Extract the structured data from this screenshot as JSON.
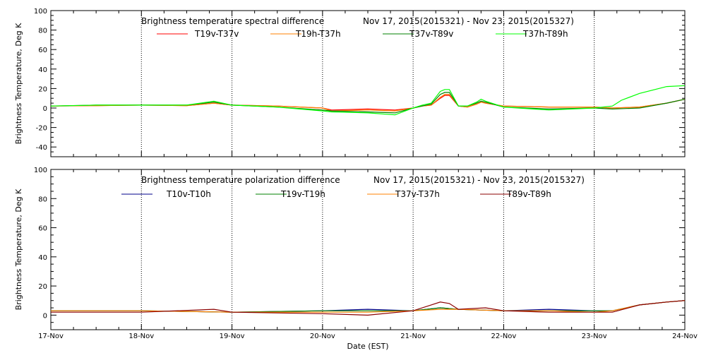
{
  "chart_data": [
    {
      "type": "line",
      "title": "Brightness temperature spectral difference",
      "subtitle": "Nov 17, 2015(2015321) - Nov 23, 2015(2015327)",
      "ylabel": "Brightness Temperature, Deg K",
      "xlabel": "",
      "ylim": [
        -50,
        100
      ],
      "yticks": [
        -40,
        -20,
        0,
        20,
        40,
        60,
        80,
        100
      ],
      "xlim": [
        0,
        7
      ],
      "grid": "vertical dotted at day boundaries",
      "legend_position": "top",
      "series": [
        {
          "name": "T19v-T37v",
          "color": "#ff0000",
          "x": [
            0,
            0.5,
            1,
            1.5,
            1.8,
            2,
            2.5,
            3,
            3.1,
            3.5,
            3.8,
            4,
            4.1,
            4.2,
            4.3,
            4.35,
            4.4,
            4.5,
            4.6,
            4.7,
            4.75,
            4.8,
            5,
            5.5,
            6,
            6.2,
            6.5,
            6.8,
            7
          ],
          "y": [
            2,
            2.5,
            3,
            2.5,
            5,
            3,
            2,
            0,
            -2,
            -1,
            -2,
            0,
            2,
            3,
            10,
            13,
            13,
            2,
            1,
            4,
            6,
            5,
            2,
            1,
            1,
            0,
            1,
            5,
            9
          ]
        },
        {
          "name": "T19h-T37h",
          "color": "#ff8000",
          "x": [
            0,
            0.5,
            1,
            1.5,
            1.8,
            2,
            2.5,
            3,
            3.1,
            3.5,
            3.8,
            4,
            4.1,
            4.2,
            4.3,
            4.35,
            4.4,
            4.5,
            4.6,
            4.7,
            4.75,
            4.8,
            5,
            5.5,
            6,
            6.2,
            6.5,
            6.8,
            7
          ],
          "y": [
            2,
            2.5,
            3,
            2.5,
            5,
            3,
            2,
            0,
            -3,
            -2,
            -3,
            0,
            2,
            3,
            11,
            14,
            14,
            2,
            1,
            4,
            6,
            5,
            2,
            1,
            1,
            0,
            1,
            5,
            9
          ]
        },
        {
          "name": "T37v-T89v",
          "color": "#008000",
          "x": [
            0,
            0.5,
            1,
            1.5,
            1.8,
            2,
            2.5,
            3,
            3.1,
            3.5,
            3.8,
            4,
            4.1,
            4.2,
            4.3,
            4.35,
            4.4,
            4.5,
            4.6,
            4.7,
            4.75,
            4.8,
            5,
            5.5,
            6,
            6.2,
            6.5,
            6.8,
            7
          ],
          "y": [
            2,
            3,
            3,
            3,
            6,
            3,
            1,
            -2,
            -3,
            -4,
            -5,
            0,
            2,
            4,
            14,
            16,
            16,
            2,
            2,
            5,
            7,
            6,
            1,
            -1,
            0,
            -1,
            0,
            5,
            9
          ]
        },
        {
          "name": "T37h-T89h",
          "color": "#00ff00",
          "x": [
            0,
            0.5,
            1,
            1.5,
            1.8,
            2,
            2.5,
            3,
            3.1,
            3.5,
            3.8,
            4,
            4.1,
            4.2,
            4.3,
            4.35,
            4.4,
            4.5,
            4.6,
            4.7,
            4.75,
            4.8,
            5,
            5.5,
            6,
            6.2,
            6.3,
            6.5,
            6.8,
            7
          ],
          "y": [
            2,
            3,
            3,
            3,
            7,
            3,
            1,
            -3,
            -4,
            -5,
            -7,
            0,
            3,
            5,
            17,
            19,
            19,
            2,
            2,
            6,
            9,
            7,
            1,
            -2,
            0,
            2,
            8,
            15,
            22,
            23
          ]
        }
      ]
    },
    {
      "type": "line",
      "title": "Brightness temperature polarization difference",
      "subtitle": "Nov 17, 2015(2015321) - Nov 23, 2015(2015327)",
      "ylabel": "Brightness Temperature, Deg K",
      "xlabel": "Date (EST)",
      "ylim": [
        -10,
        100
      ],
      "yticks": [
        0,
        20,
        40,
        60,
        80,
        100
      ],
      "xlim": [
        0,
        7
      ],
      "categories": [
        "17-Nov",
        "18-Nov",
        "19-Nov",
        "20-Nov",
        "21-Nov",
        "22-Nov",
        "23-Nov",
        "24-Nov"
      ],
      "grid": "vertical dotted at day boundaries",
      "legend_position": "top",
      "series": [
        {
          "name": "T10v-T10h",
          "color": "#00008b",
          "x": [
            0,
            1,
            2,
            3,
            3.5,
            4,
            4.3,
            4.5,
            5,
            5.5,
            6,
            6.2,
            6.5,
            6.8,
            7
          ],
          "y": [
            3,
            3,
            2,
            3,
            4,
            3,
            5,
            4,
            3,
            4,
            3,
            3,
            7,
            9,
            10
          ]
        },
        {
          "name": "T19v-T19h",
          "color": "#008000",
          "x": [
            0,
            1,
            2,
            3,
            3.5,
            4,
            4.3,
            4.5,
            5,
            5.5,
            6,
            6.2,
            6.5,
            6.8,
            7
          ],
          "y": [
            3,
            3,
            2,
            3,
            3,
            3,
            5,
            4,
            3,
            3,
            3,
            3,
            7,
            9,
            10
          ]
        },
        {
          "name": "T37v-T37h",
          "color": "#ff8000",
          "x": [
            0,
            1,
            2,
            3,
            3.5,
            4,
            4.3,
            4.5,
            5,
            5.5,
            6,
            6.2,
            6.5,
            6.8,
            7
          ],
          "y": [
            3,
            3,
            2,
            2,
            2,
            3,
            4,
            4,
            3,
            3,
            2,
            3,
            7,
            9,
            10
          ]
        },
        {
          "name": "T89v-T89h",
          "color": "#8b0000",
          "x": [
            0,
            1,
            1.8,
            2,
            3,
            3.5,
            4,
            4.2,
            4.3,
            4.4,
            4.5,
            4.8,
            5,
            5.5,
            6,
            6.2,
            6.5,
            6.8,
            7
          ],
          "y": [
            2,
            2,
            4,
            2,
            1,
            0,
            3,
            7,
            9,
            8,
            4,
            5,
            3,
            2,
            2,
            2,
            7,
            9,
            10
          ]
        }
      ]
    }
  ],
  "x_tick_labels": [
    "17-Nov",
    "18-Nov",
    "19-Nov",
    "20-Nov",
    "21-Nov",
    "22-Nov",
    "23-Nov",
    "24-Nov"
  ]
}
